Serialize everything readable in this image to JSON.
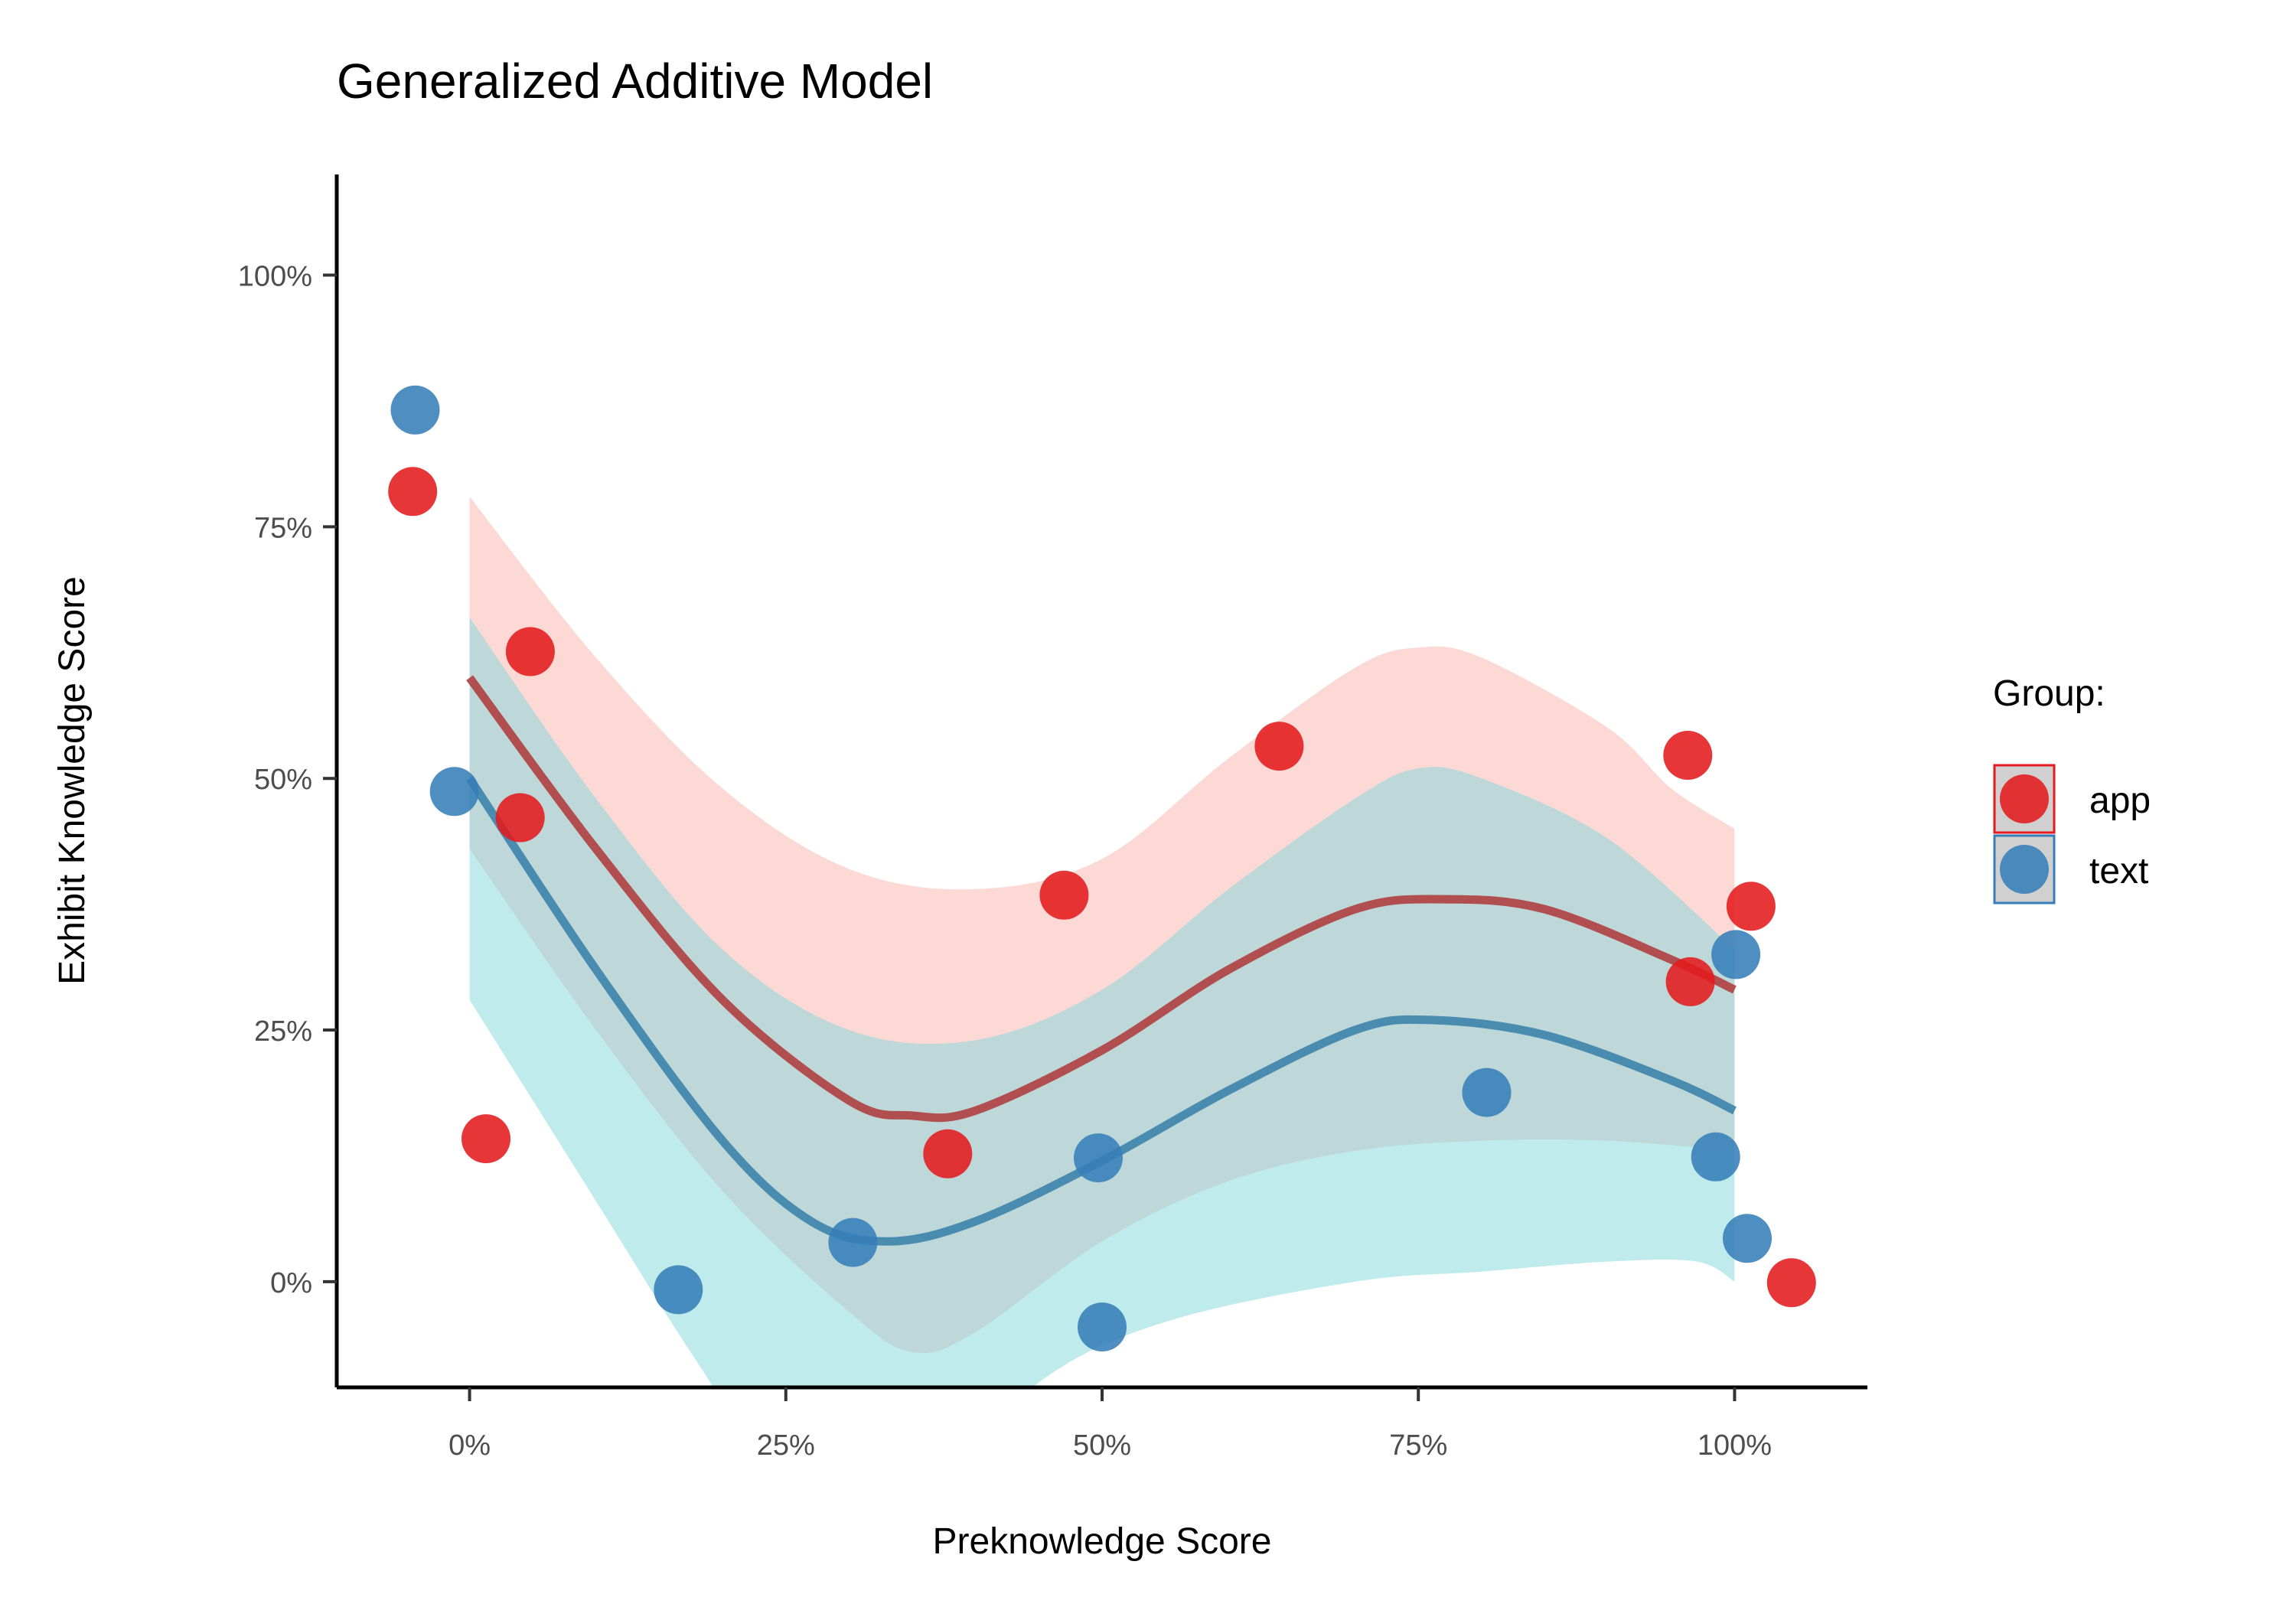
{
  "chart_data": {
    "type": "scatter",
    "title": "Generalized Additive Model",
    "xlabel": "Preknowledge Score",
    "ylabel": "Exhibit Knowledge Score",
    "xlim": [
      -0.105,
      1.105
    ],
    "ylim": [
      -0.105,
      1.1
    ],
    "x_ticks": [
      0,
      0.25,
      0.5,
      0.75,
      1.0
    ],
    "x_tick_labels": [
      "0%",
      "25%",
      "50%",
      "75%",
      "100%"
    ],
    "y_ticks": [
      0,
      0.25,
      0.5,
      0.75,
      1.0
    ],
    "y_tick_labels": [
      "0%",
      "25%",
      "50%",
      "75%",
      "100%"
    ],
    "grid": false,
    "legend": {
      "title": "Group:",
      "placement": "right"
    },
    "series": [
      {
        "name": "app",
        "color": "#e41a1c",
        "line_color": "#b04e50",
        "band_color": "#fbb4ae",
        "points": [
          {
            "x": -0.045,
            "y": 0.785
          },
          {
            "x": 0.048,
            "y": 0.626
          },
          {
            "x": 0.04,
            "y": 0.461
          },
          {
            "x": 0.013,
            "y": 0.142
          },
          {
            "x": 0.378,
            "y": 0.127
          },
          {
            "x": 0.47,
            "y": 0.384
          },
          {
            "x": 0.64,
            "y": 0.532
          },
          {
            "x": 0.963,
            "y": 0.523
          },
          {
            "x": 0.965,
            "y": 0.298
          },
          {
            "x": 1.013,
            "y": 0.373
          },
          {
            "x": 1.045,
            "y": -0.001
          }
        ],
        "fit": [
          {
            "x": 0.0,
            "y": 0.6
          },
          {
            "x": 0.1,
            "y": 0.43
          },
          {
            "x": 0.2,
            "y": 0.28
          },
          {
            "x": 0.3,
            "y": 0.18
          },
          {
            "x": 0.35,
            "y": 0.165
          },
          {
            "x": 0.4,
            "y": 0.17
          },
          {
            "x": 0.5,
            "y": 0.23
          },
          {
            "x": 0.6,
            "y": 0.31
          },
          {
            "x": 0.7,
            "y": 0.37
          },
          {
            "x": 0.77,
            "y": 0.38
          },
          {
            "x": 0.85,
            "y": 0.37
          },
          {
            "x": 0.95,
            "y": 0.32
          },
          {
            "x": 1.0,
            "y": 0.29
          }
        ],
        "ci_upper": [
          {
            "x": 0.0,
            "y": 0.78
          },
          {
            "x": 0.1,
            "y": 0.62
          },
          {
            "x": 0.2,
            "y": 0.49
          },
          {
            "x": 0.3,
            "y": 0.41
          },
          {
            "x": 0.4,
            "y": 0.39
          },
          {
            "x": 0.5,
            "y": 0.42
          },
          {
            "x": 0.6,
            "y": 0.52
          },
          {
            "x": 0.7,
            "y": 0.61
          },
          {
            "x": 0.75,
            "y": 0.63
          },
          {
            "x": 0.8,
            "y": 0.62
          },
          {
            "x": 0.9,
            "y": 0.55
          },
          {
            "x": 0.95,
            "y": 0.49
          },
          {
            "x": 1.0,
            "y": 0.45
          }
        ],
        "ci_lower": [
          {
            "x": 0.0,
            "y": 0.43
          },
          {
            "x": 0.1,
            "y": 0.25
          },
          {
            "x": 0.2,
            "y": 0.09
          },
          {
            "x": 0.3,
            "y": -0.03
          },
          {
            "x": 0.35,
            "y": -0.07
          },
          {
            "x": 0.4,
            "y": -0.05
          },
          {
            "x": 0.5,
            "y": 0.04
          },
          {
            "x": 0.6,
            "y": 0.1
          },
          {
            "x": 0.7,
            "y": 0.13
          },
          {
            "x": 0.8,
            "y": 0.14
          },
          {
            "x": 0.9,
            "y": 0.14
          },
          {
            "x": 1.0,
            "y": 0.13
          }
        ]
      },
      {
        "name": "text",
        "color": "#377eb8",
        "line_color": "#4a8bb0",
        "band_color": "#7fd8dc",
        "points": [
          {
            "x": -0.043,
            "y": 0.866
          },
          {
            "x": -0.012,
            "y": 0.487
          },
          {
            "x": 0.165,
            "y": -0.008
          },
          {
            "x": 0.303,
            "y": 0.039
          },
          {
            "x": 0.497,
            "y": 0.123
          },
          {
            "x": 0.5,
            "y": -0.045
          },
          {
            "x": 0.804,
            "y": 0.188
          },
          {
            "x": 0.985,
            "y": 0.124
          },
          {
            "x": 1.001,
            "y": 0.325
          },
          {
            "x": 1.01,
            "y": 0.043
          }
        ],
        "fit": [
          {
            "x": 0.0,
            "y": 0.5
          },
          {
            "x": 0.1,
            "y": 0.31
          },
          {
            "x": 0.2,
            "y": 0.14
          },
          {
            "x": 0.27,
            "y": 0.06
          },
          {
            "x": 0.33,
            "y": 0.04
          },
          {
            "x": 0.4,
            "y": 0.06
          },
          {
            "x": 0.5,
            "y": 0.12
          },
          {
            "x": 0.6,
            "y": 0.19
          },
          {
            "x": 0.7,
            "y": 0.25
          },
          {
            "x": 0.76,
            "y": 0.26
          },
          {
            "x": 0.85,
            "y": 0.245
          },
          {
            "x": 0.95,
            "y": 0.2
          },
          {
            "x": 1.0,
            "y": 0.17
          }
        ],
        "ci_upper": [
          {
            "x": 0.0,
            "y": 0.66
          },
          {
            "x": 0.1,
            "y": 0.48
          },
          {
            "x": 0.2,
            "y": 0.33
          },
          {
            "x": 0.3,
            "y": 0.25
          },
          {
            "x": 0.4,
            "y": 0.24
          },
          {
            "x": 0.5,
            "y": 0.29
          },
          {
            "x": 0.6,
            "y": 0.39
          },
          {
            "x": 0.7,
            "y": 0.48
          },
          {
            "x": 0.75,
            "y": 0.51
          },
          {
            "x": 0.8,
            "y": 0.5
          },
          {
            "x": 0.9,
            "y": 0.44
          },
          {
            "x": 1.0,
            "y": 0.33
          }
        ],
        "ci_lower": [
          {
            "x": 0.0,
            "y": 0.28
          },
          {
            "x": 0.1,
            "y": 0.08
          },
          {
            "x": 0.18,
            "y": -0.08
          },
          {
            "x": 0.25,
            "y": -0.2
          },
          {
            "x": 0.35,
            "y": -0.22
          },
          {
            "x": 0.45,
            "y": -0.1
          },
          {
            "x": 0.55,
            "y": -0.04
          },
          {
            "x": 0.7,
            "y": 0.0
          },
          {
            "x": 0.8,
            "y": 0.01
          },
          {
            "x": 0.9,
            "y": 0.02
          },
          {
            "x": 0.97,
            "y": 0.02
          },
          {
            "x": 1.0,
            "y": 0.0
          }
        ]
      }
    ]
  }
}
